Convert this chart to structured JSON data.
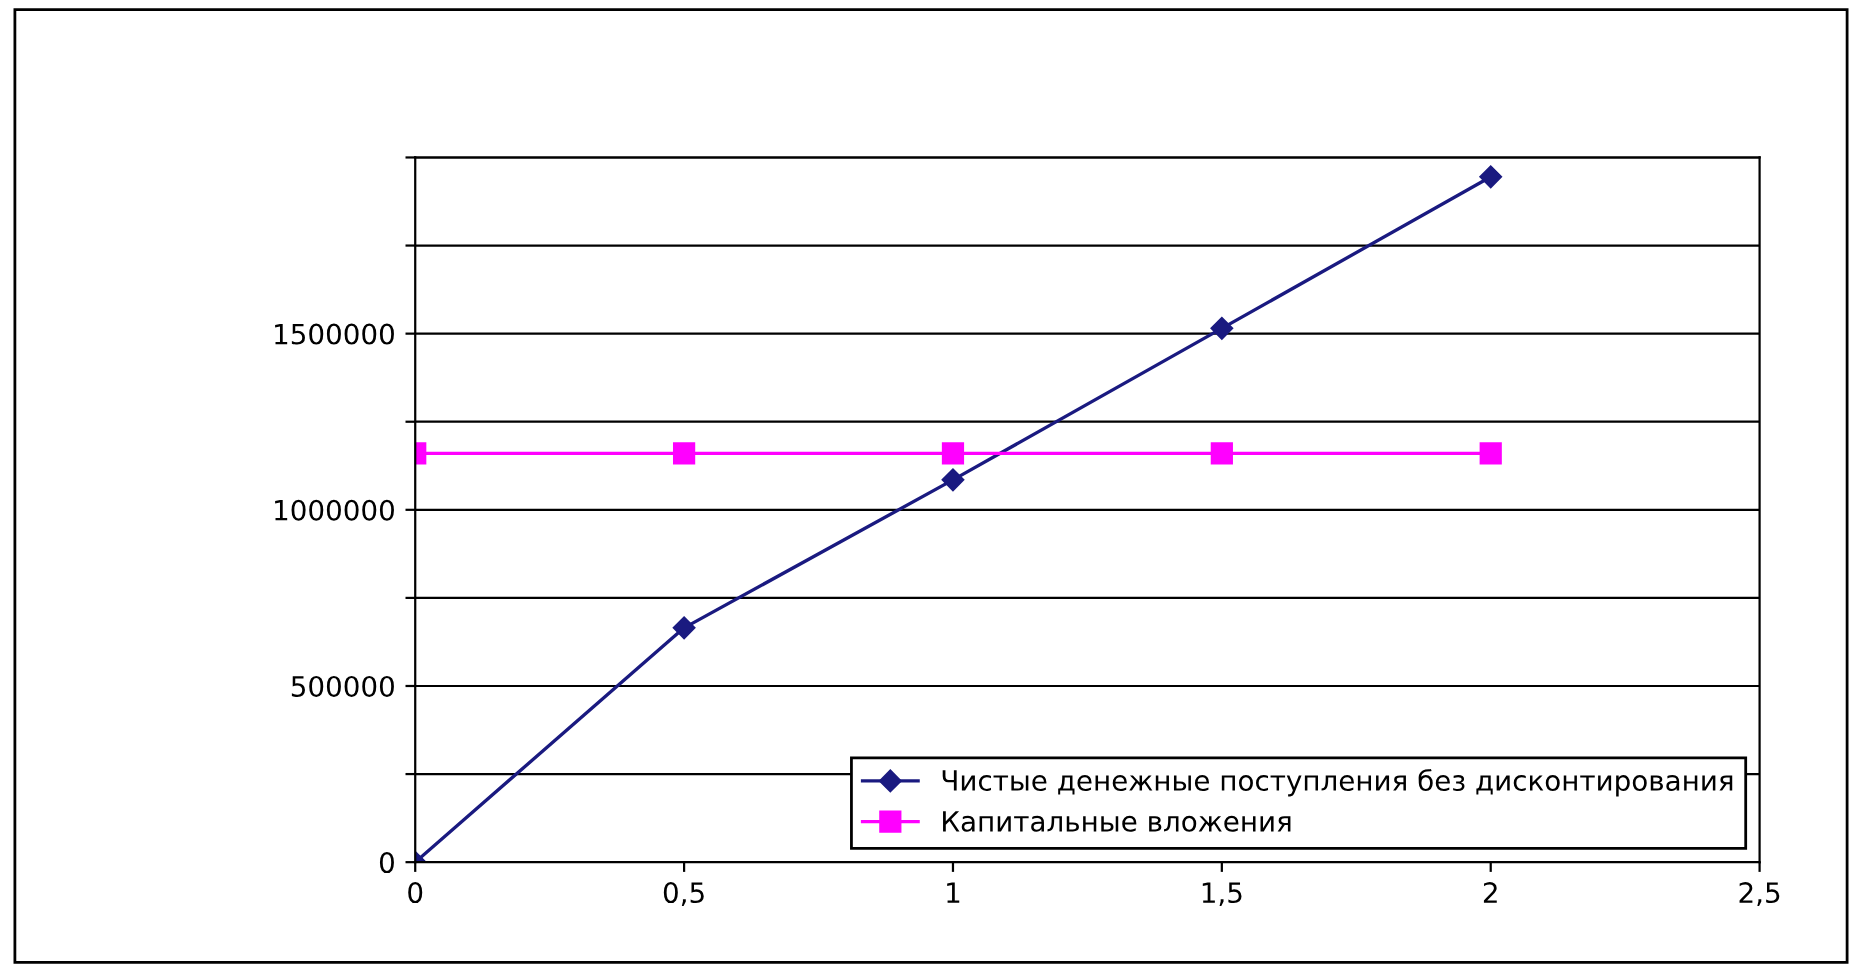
{
  "chart_data": {
    "type": "line",
    "x": [
      0,
      0.5,
      1,
      1.5,
      2
    ],
    "series": [
      {
        "name": "Чистые денежные поступления без дисконтирования",
        "color": "#1a1a80",
        "marker": "diamond",
        "values": [
          0,
          665000,
          1085000,
          1515000,
          1945000
        ]
      },
      {
        "name": "Капитальные вложения",
        "color": "#ff00ff",
        "marker": "square",
        "values": [
          1160000,
          1160000,
          1160000,
          1160000,
          1160000
        ]
      }
    ],
    "xlim": [
      0,
      2.5
    ],
    "xticks": [
      0,
      {
        "value": 0.5,
        "label": "0,5"
      },
      1,
      {
        "value": 1.5,
        "label": "1,5"
      },
      2,
      {
        "value": 2.5,
        "label": "2,5"
      }
    ],
    "ylim": [
      0,
      2000000
    ],
    "yticks": [
      0,
      {
        "value": 250000,
        "label": null
      },
      500000,
      {
        "value": 750000,
        "label": null
      },
      1000000,
      {
        "value": 1250000,
        "label": null
      },
      1500000,
      {
        "value": 1750000,
        "label": null
      },
      {
        "value": 2000000,
        "label": null
      }
    ],
    "grid": "y",
    "legend": "bottom right",
    "line_style": "solid"
  }
}
